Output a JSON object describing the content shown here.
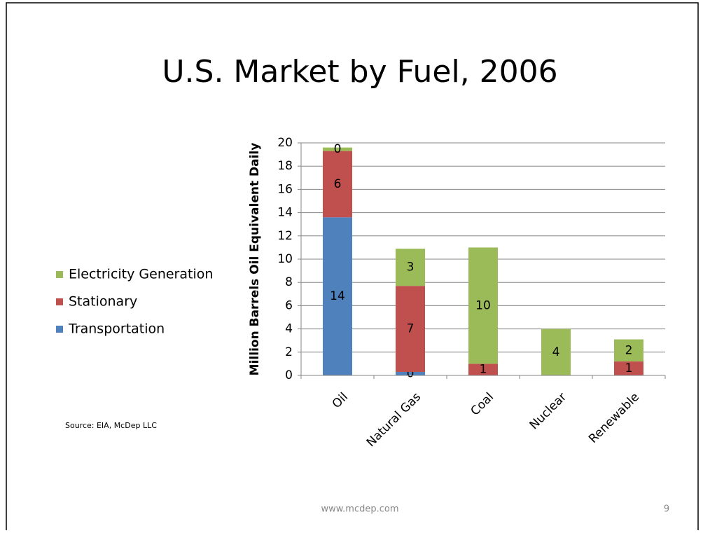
{
  "chart_data": {
    "type": "stacked_bar",
    "title": "U.S. Market by Fuel, 2006",
    "y_axis_label": "Million Barrels Oil Equivalent Daily",
    "source": "Source: EIA, McDep LLC",
    "footer": "www.mcdep.com",
    "page_number": "9",
    "categories": [
      "Oil",
      "Natural Gas",
      "Coal",
      "Nuclear",
      "Renewable"
    ],
    "series": [
      {
        "name": "Transportation",
        "color": "#4f81bd",
        "values": [
          13.6,
          0.3,
          0,
          0,
          0
        ],
        "value_labels": [
          "14",
          "0",
          null,
          null,
          null
        ]
      },
      {
        "name": "Stationary",
        "color": "#c0504d",
        "values": [
          5.7,
          7.4,
          1.0,
          0,
          1.2
        ],
        "value_labels": [
          "6",
          "7",
          "1",
          null,
          "1"
        ]
      },
      {
        "name": "Electricity Generation",
        "color": "#9bbb59",
        "values": [
          0.3,
          3.2,
          10.0,
          4.0,
          1.9
        ],
        "value_labels": [
          "0",
          "3",
          "10",
          "4",
          "2"
        ]
      }
    ],
    "ylim": [
      0,
      20
    ],
    "yticks": [
      0,
      2,
      4,
      6,
      8,
      10,
      12,
      14,
      16,
      18,
      20
    ],
    "grid": true,
    "legend": "left"
  }
}
